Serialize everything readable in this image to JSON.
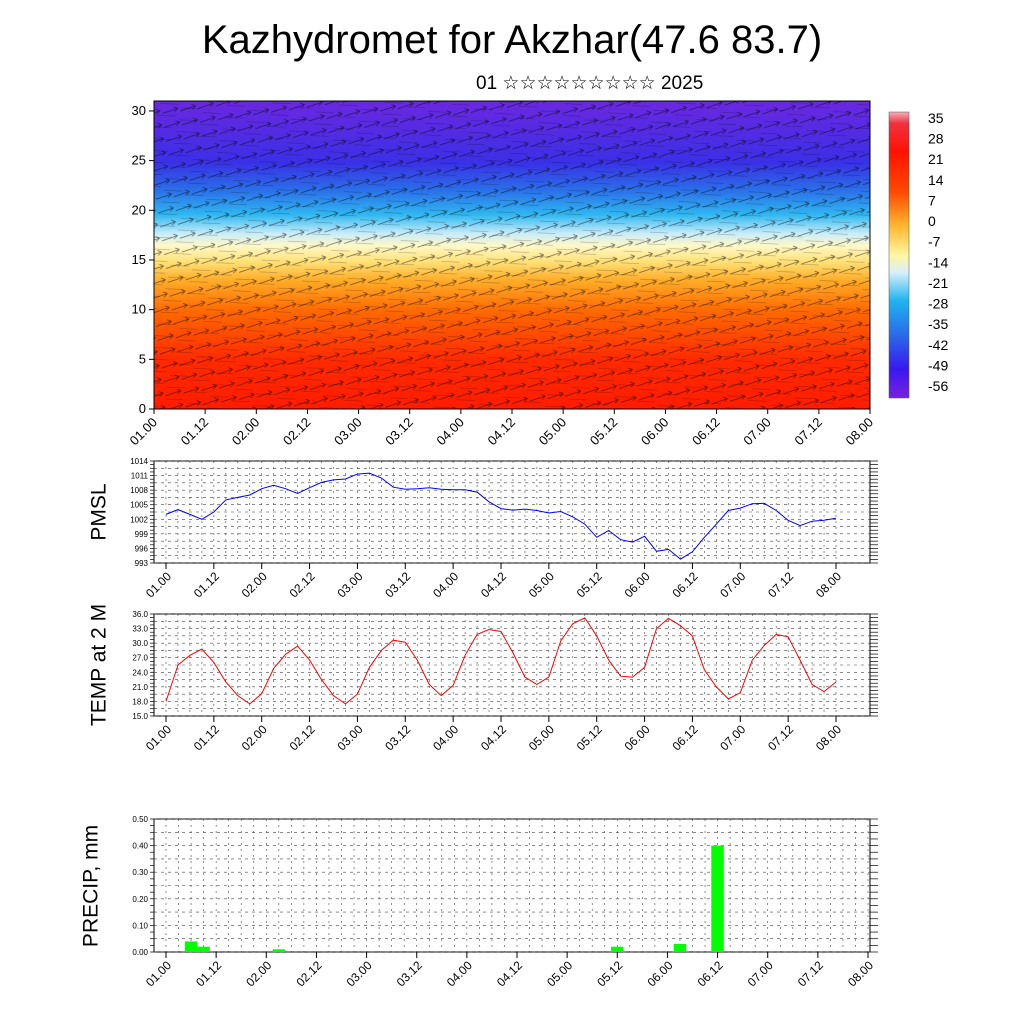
{
  "page": {
    "title": "Kazhydromet for Akzhar(47.6 83.7)",
    "subtitle": "01 ☆☆☆☆☆☆☆☆☆ 2025"
  },
  "chart_data": [
    {
      "type": "heatmap",
      "title": "",
      "xlabel": "",
      "ylabel": "",
      "x_ticks": [
        "01.00",
        "01.12",
        "02.00",
        "02.12",
        "03.00",
        "03.12",
        "04.00",
        "04.12",
        "05.00",
        "05.12",
        "06.00",
        "06.12",
        "07.00",
        "07.12",
        "08.00"
      ],
      "y_ticks": [
        0,
        5,
        10,
        15,
        20,
        25,
        30
      ],
      "ylim": [
        0,
        31
      ],
      "colorbar_ticks": [
        35,
        28,
        21,
        14,
        7,
        0,
        -7,
        -14,
        -21,
        -28,
        -35,
        -42,
        -49,
        -56
      ],
      "colorbar_range": [
        -60,
        38
      ],
      "levels_temperature_approx": [
        {
          "level": 0,
          "value": 30
        },
        {
          "level": 5,
          "value": 22
        },
        {
          "level": 10,
          "value": 12
        },
        {
          "level": 13,
          "value": 3
        },
        {
          "level": 15,
          "value": -5
        },
        {
          "level": 17,
          "value": -14
        },
        {
          "level": 20,
          "value": -26
        },
        {
          "level": 23,
          "value": -40
        },
        {
          "level": 26,
          "value": -52
        },
        {
          "level": 31,
          "value": -58
        }
      ],
      "overlay": "wind vectors",
      "colors": {
        "warm": "#ff1a00",
        "mid": "#fff59a",
        "cool": "#1fb4f0",
        "cold": "#5010e0"
      }
    },
    {
      "type": "line",
      "ylabel": "PMSL",
      "ylim": [
        993,
        1014
      ],
      "y_ticks": [
        993,
        996,
        999,
        1002,
        1005,
        1008,
        1011,
        1014
      ],
      "x_ticks": [
        "01.00",
        "01.12",
        "02.00",
        "02.12",
        "03.00",
        "03.12",
        "04.00",
        "04.12",
        "05.00",
        "05.12",
        "06.00",
        "06.12",
        "07.00",
        "07.12",
        "08.00"
      ],
      "x": [
        0,
        3,
        6,
        9,
        12,
        15,
        18,
        21,
        24,
        27,
        30,
        33,
        36,
        39,
        42,
        45,
        48,
        51,
        54,
        57,
        60,
        63,
        66,
        69,
        72,
        75,
        78,
        81,
        84,
        87,
        90,
        93,
        96,
        99,
        102,
        105,
        108,
        111,
        114,
        117,
        120,
        123,
        126,
        129,
        132,
        135,
        138,
        141,
        144,
        147,
        150,
        153,
        156,
        159,
        162,
        165,
        168
      ],
      "series": [
        {
          "color": "#0000ff",
          "values": [
            1003,
            1004,
            1003,
            1002,
            1003.5,
            1006,
            1006.5,
            1007,
            1008.3,
            1009,
            1008.3,
            1007.3,
            1008.5,
            1009.6,
            1010.1,
            1010.3,
            1011.3,
            1011.5,
            1010.5,
            1008.6,
            1008.2,
            1008.3,
            1008.5,
            1008.2,
            1008.1,
            1008.1,
            1007.6,
            1005.6,
            1004.2,
            1003.9,
            1004.1,
            1003.8,
            1003.3,
            1003.6,
            1002.5,
            1001,
            998.3,
            999.7,
            997.8,
            997.3,
            998.5,
            995.4,
            995.8,
            993.8,
            995.3,
            998.3,
            1001,
            1003.8,
            1004.3,
            1005.2,
            1005.3,
            1003.8,
            1001.8,
            1000.7,
            1001.6,
            1001.8,
            1002.2
          ]
        }
      ]
    },
    {
      "type": "line",
      "ylabel": "TEMP at 2 M",
      "ylim": [
        15,
        36
      ],
      "y_ticks": [
        "15.0",
        "18.0",
        "21.0",
        "24.0",
        "27.0",
        "30.0",
        "33.0",
        "36.0"
      ],
      "x_ticks": [
        "01.00",
        "01.12",
        "02.00",
        "02.12",
        "03.00",
        "03.12",
        "04.00",
        "04.12",
        "05.00",
        "05.12",
        "06.00",
        "06.12",
        "07.00",
        "07.12",
        "08.00"
      ],
      "x": [
        0,
        3,
        6,
        9,
        12,
        15,
        18,
        21,
        24,
        27,
        30,
        33,
        36,
        39,
        42,
        45,
        48,
        51,
        54,
        57,
        60,
        63,
        66,
        69,
        72,
        75,
        78,
        81,
        84,
        87,
        90,
        93,
        96,
        99,
        102,
        105,
        108,
        111,
        114,
        117,
        120,
        123,
        126,
        129,
        132,
        135,
        138,
        141,
        144,
        147,
        150,
        153,
        156,
        159,
        162,
        165,
        168
      ],
      "series": [
        {
          "color": "#ff0000",
          "values": [
            18,
            25.5,
            27.5,
            28.8,
            26,
            22,
            19.2,
            17.5,
            19.6,
            24.8,
            27.7,
            29.4,
            26.5,
            22.5,
            19.2,
            17.5,
            19.5,
            25,
            28.5,
            30.6,
            30.2,
            26.5,
            21.5,
            19.2,
            21.3,
            27.5,
            31.8,
            32.8,
            32.4,
            28,
            23,
            21.5,
            23,
            30.5,
            34,
            35.2,
            31.5,
            26.5,
            23.2,
            23,
            25,
            33,
            35.1,
            33.6,
            31.5,
            24.5,
            21,
            18.5,
            19.8,
            26.5,
            29.5,
            31.8,
            31.3,
            26.5,
            21.5,
            20,
            22
          ]
        }
      ]
    },
    {
      "type": "bar",
      "ylabel": "PRECIP, mm",
      "ylim": [
        0,
        0.5
      ],
      "y_ticks": [
        "0.00",
        "0.10",
        "0.20",
        "0.30",
        "0.40",
        "0.50"
      ],
      "x_ticks": [
        "01.00",
        "01.12",
        "02.00",
        "02.12",
        "03.00",
        "03.12",
        "04.00",
        "04.12",
        "05.00",
        "05.12",
        "06.00",
        "06.12",
        "07.00",
        "07.12",
        "08.00"
      ],
      "x": [
        6,
        9,
        27,
        108,
        123,
        132
      ],
      "values": [
        0.04,
        0.02,
        0.01,
        0.02,
        0.03,
        0.4
      ],
      "color": "#00ff00"
    }
  ]
}
